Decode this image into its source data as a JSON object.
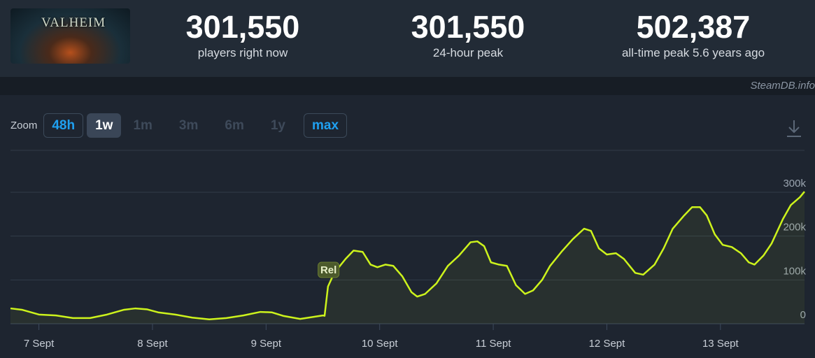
{
  "header": {
    "logo": "VALHEIM",
    "stats": [
      {
        "value": "301,550",
        "label": "players right now"
      },
      {
        "value": "301,550",
        "label": "24-hour peak"
      },
      {
        "value": "502,387",
        "label": "all-time peak 5.6 years ago"
      }
    ],
    "watermark": "SteamDB.info"
  },
  "zoom": {
    "label": "Zoom",
    "options": [
      {
        "label": "48h",
        "state": "enabled"
      },
      {
        "label": "1w",
        "state": "selected"
      },
      {
        "label": "1m",
        "state": "disabled"
      },
      {
        "label": "3m",
        "state": "disabled"
      },
      {
        "label": "6m",
        "state": "disabled"
      },
      {
        "label": "1y",
        "state": "disabled"
      },
      {
        "label": "max",
        "state": "enabled"
      }
    ]
  },
  "chart_data": {
    "type": "line",
    "x": [
      6.75,
      6.85,
      7.0,
      7.15,
      7.3,
      7.45,
      7.6,
      7.75,
      7.85,
      7.95,
      8.05,
      8.2,
      8.35,
      8.5,
      8.65,
      8.8,
      8.95,
      9.05,
      9.15,
      9.3,
      9.5,
      9.515,
      9.545,
      9.6,
      9.7,
      9.77,
      9.85,
      9.92,
      9.98,
      10.05,
      10.12,
      10.2,
      10.28,
      10.33,
      10.4,
      10.5,
      10.6,
      10.7,
      10.8,
      10.86,
      10.92,
      10.98,
      11.05,
      11.12,
      11.2,
      11.28,
      11.35,
      11.43,
      11.5,
      11.6,
      11.7,
      11.8,
      11.86,
      11.93,
      12.0,
      12.08,
      12.15,
      12.25,
      12.32,
      12.42,
      12.5,
      12.58,
      12.68,
      12.75,
      12.82,
      12.88,
      12.95,
      13.02,
      13.1,
      13.18,
      13.25,
      13.3,
      13.38,
      13.45,
      13.55,
      13.62,
      13.7,
      13.74
    ],
    "series": [
      {
        "color": "#cdf31c",
        "values": [
          35000,
          32000,
          21000,
          19000,
          13000,
          13000,
          21000,
          32000,
          35000,
          33000,
          26000,
          21000,
          14000,
          10000,
          13000,
          19000,
          27000,
          26000,
          18000,
          11000,
          19000,
          18000,
          85000,
          116000,
          148000,
          167000,
          164000,
          135000,
          129000,
          135000,
          132000,
          108000,
          72000,
          62000,
          68000,
          92000,
          132000,
          156000,
          186000,
          188000,
          177000,
          140000,
          135000,
          132000,
          88000,
          68000,
          76000,
          100000,
          132000,
          164000,
          193000,
          217000,
          212000,
          172000,
          158000,
          161000,
          148000,
          116000,
          112000,
          135000,
          172000,
          217000,
          247000,
          266000,
          266000,
          247000,
          204000,
          180000,
          175000,
          161000,
          140000,
          135000,
          156000,
          183000,
          239000,
          271000,
          289000,
          301550
        ]
      }
    ],
    "xlim": [
      6.75,
      13.74
    ],
    "xticks": [
      {
        "value": 7,
        "label": "7 Sept"
      },
      {
        "value": 8,
        "label": "8 Sept"
      },
      {
        "value": 9,
        "label": "9 Sept"
      },
      {
        "value": 10,
        "label": "10 Sept"
      },
      {
        "value": 11,
        "label": "11 Sept"
      },
      {
        "value": 12,
        "label": "12 Sept"
      },
      {
        "value": 13,
        "label": "13 Sept"
      }
    ],
    "ylim": [
      0,
      300000
    ],
    "yticks": [
      0,
      {
        "value": 100000,
        "label": "100k"
      },
      {
        "value": 200000,
        "label": "200k"
      },
      {
        "value": 300000,
        "label": "300k"
      }
    ],
    "grid": true,
    "annotations": [
      {
        "text": "Rel",
        "x": 9.55
      }
    ]
  }
}
